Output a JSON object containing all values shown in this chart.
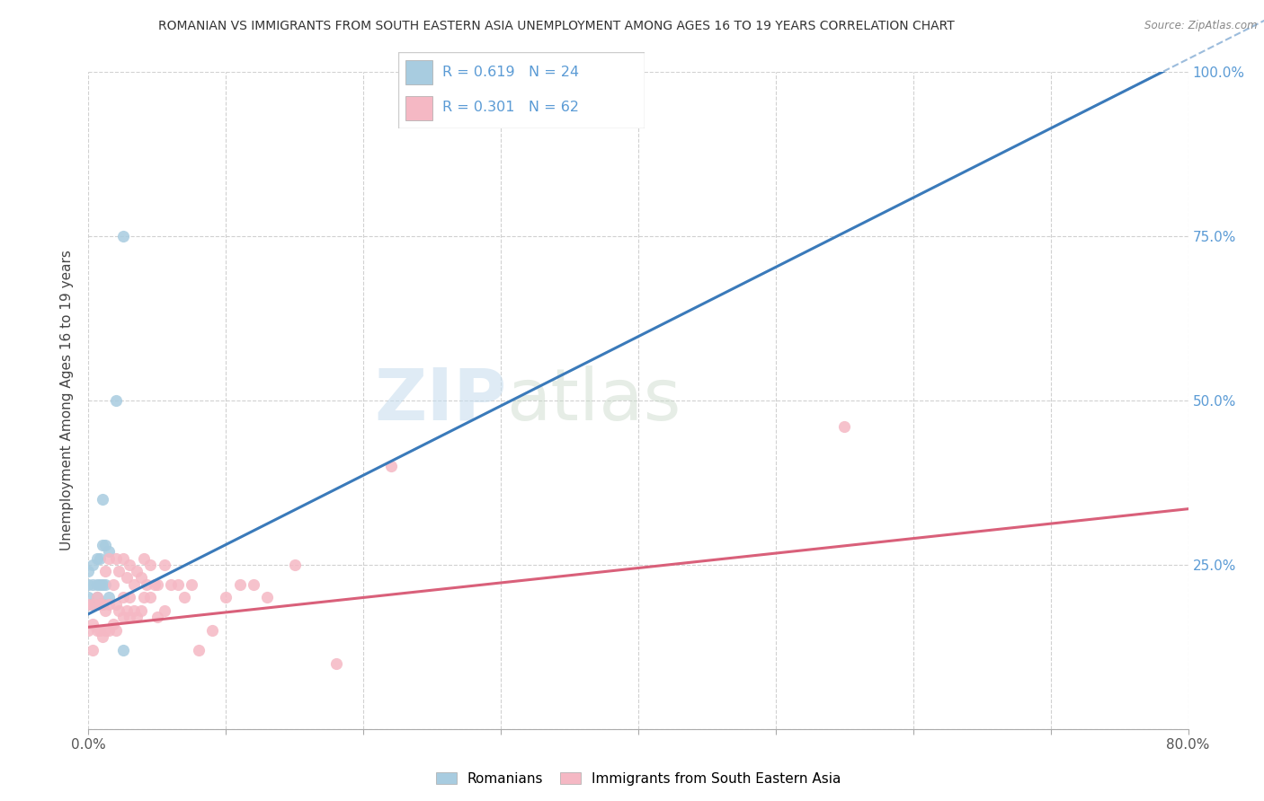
{
  "title": "ROMANIAN VS IMMIGRANTS FROM SOUTH EASTERN ASIA UNEMPLOYMENT AMONG AGES 16 TO 19 YEARS CORRELATION CHART",
  "source": "Source: ZipAtlas.com",
  "ylabel": "Unemployment Among Ages 16 to 19 years",
  "xlim": [
    0.0,
    0.8
  ],
  "ylim": [
    0.0,
    1.0
  ],
  "ytick_positions": [
    0.0,
    0.25,
    0.5,
    0.75,
    1.0
  ],
  "ytick_labels_right": [
    "",
    "25.0%",
    "50.0%",
    "75.0%",
    "100.0%"
  ],
  "color_romanian": "#a8cce0",
  "color_immigrant": "#f5b8c4",
  "color_line_romanian": "#3a7aba",
  "color_line_immigrant": "#d9607a",
  "watermark_zip": "ZIP",
  "watermark_atlas": "atlas",
  "background_color": "#ffffff",
  "grid_color": "#cccccc",
  "romanians_x": [
    0.0,
    0.0,
    0.0,
    0.0,
    0.003,
    0.003,
    0.003,
    0.006,
    0.006,
    0.006,
    0.008,
    0.008,
    0.008,
    0.01,
    0.01,
    0.01,
    0.01,
    0.012,
    0.012,
    0.015,
    0.015,
    0.02,
    0.025,
    0.025
  ],
  "romanians_y": [
    0.19,
    0.2,
    0.22,
    0.24,
    0.19,
    0.22,
    0.25,
    0.2,
    0.22,
    0.26,
    0.19,
    0.22,
    0.26,
    0.19,
    0.22,
    0.28,
    0.35,
    0.22,
    0.28,
    0.2,
    0.27,
    0.5,
    0.75,
    0.12
  ],
  "immigrants_x": [
    0.0,
    0.0,
    0.003,
    0.003,
    0.003,
    0.006,
    0.006,
    0.008,
    0.008,
    0.01,
    0.01,
    0.012,
    0.012,
    0.012,
    0.015,
    0.015,
    0.015,
    0.018,
    0.018,
    0.02,
    0.02,
    0.02,
    0.022,
    0.022,
    0.025,
    0.025,
    0.025,
    0.028,
    0.028,
    0.03,
    0.03,
    0.03,
    0.033,
    0.033,
    0.035,
    0.035,
    0.038,
    0.038,
    0.04,
    0.04,
    0.042,
    0.045,
    0.045,
    0.048,
    0.05,
    0.05,
    0.055,
    0.055,
    0.06,
    0.065,
    0.07,
    0.075,
    0.08,
    0.09,
    0.1,
    0.11,
    0.12,
    0.13,
    0.15,
    0.18,
    0.22,
    0.55
  ],
  "immigrants_y": [
    0.15,
    0.19,
    0.12,
    0.16,
    0.19,
    0.15,
    0.2,
    0.15,
    0.19,
    0.14,
    0.19,
    0.15,
    0.18,
    0.24,
    0.15,
    0.19,
    0.26,
    0.16,
    0.22,
    0.15,
    0.19,
    0.26,
    0.18,
    0.24,
    0.17,
    0.2,
    0.26,
    0.18,
    0.23,
    0.17,
    0.2,
    0.25,
    0.18,
    0.22,
    0.17,
    0.24,
    0.18,
    0.23,
    0.2,
    0.26,
    0.22,
    0.2,
    0.25,
    0.22,
    0.17,
    0.22,
    0.18,
    0.25,
    0.22,
    0.22,
    0.2,
    0.22,
    0.12,
    0.15,
    0.2,
    0.22,
    0.22,
    0.2,
    0.25,
    0.1,
    0.4,
    0.46
  ],
  "line_romanian_x0": 0.0,
  "line_romanian_y0": 0.175,
  "line_romanian_x1": 0.8,
  "line_romanian_y1": 1.02,
  "line_immigrant_x0": 0.0,
  "line_immigrant_y0": 0.155,
  "line_immigrant_x1": 0.8,
  "line_immigrant_y1": 0.335
}
